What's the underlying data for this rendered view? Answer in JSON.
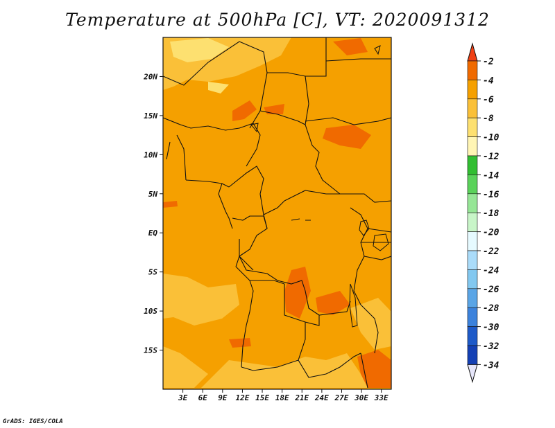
{
  "title": "Temperature at 500hPa [C], VT: 2020091312",
  "footer": "GrADS: IGES/COLA",
  "map": {
    "lon_range": [
      0,
      34.5
    ],
    "lat_range": [
      -20,
      25
    ],
    "lat_ticks": [
      {
        "label": "20N",
        "value": 20
      },
      {
        "label": "15N",
        "value": 15
      },
      {
        "label": "10N",
        "value": 10
      },
      {
        "label": "5N",
        "value": 5
      },
      {
        "label": "EQ",
        "value": 0
      },
      {
        "label": "5S",
        "value": -5
      },
      {
        "label": "10S",
        "value": -10
      },
      {
        "label": "15S",
        "value": -15
      }
    ],
    "lon_ticks": [
      {
        "label": "3E",
        "value": 3
      },
      {
        "label": "6E",
        "value": 6
      },
      {
        "label": "9E",
        "value": 9
      },
      {
        "label": "12E",
        "value": 12
      },
      {
        "label": "15E",
        "value": 15
      },
      {
        "label": "18E",
        "value": 18
      },
      {
        "label": "21E",
        "value": 21
      },
      {
        "label": "24E",
        "value": 24
      },
      {
        "label": "27E",
        "value": 27
      },
      {
        "label": "30E",
        "value": 30
      },
      {
        "label": "33E",
        "value": 33
      }
    ]
  },
  "colorbar": {
    "labels": [
      "-2",
      "-4",
      "-6",
      "-8",
      "-10",
      "-12",
      "-14",
      "-16",
      "-18",
      "-20",
      "-22",
      "-24",
      "-26",
      "-28",
      "-30",
      "-32",
      "-34"
    ],
    "colors": [
      "#f04014",
      "#f06a00",
      "#f5a000",
      "#fac038",
      "#fde070",
      "#fff5b4",
      "#32be32",
      "#5ad25a",
      "#96e696",
      "#c8f5c8",
      "#e6faff",
      "#aadcfa",
      "#82c8f0",
      "#5aa5e6",
      "#3c82dc",
      "#1e5ac8",
      "#1440b4",
      "#0a1e78",
      "#e6e6fa"
    ]
  }
}
